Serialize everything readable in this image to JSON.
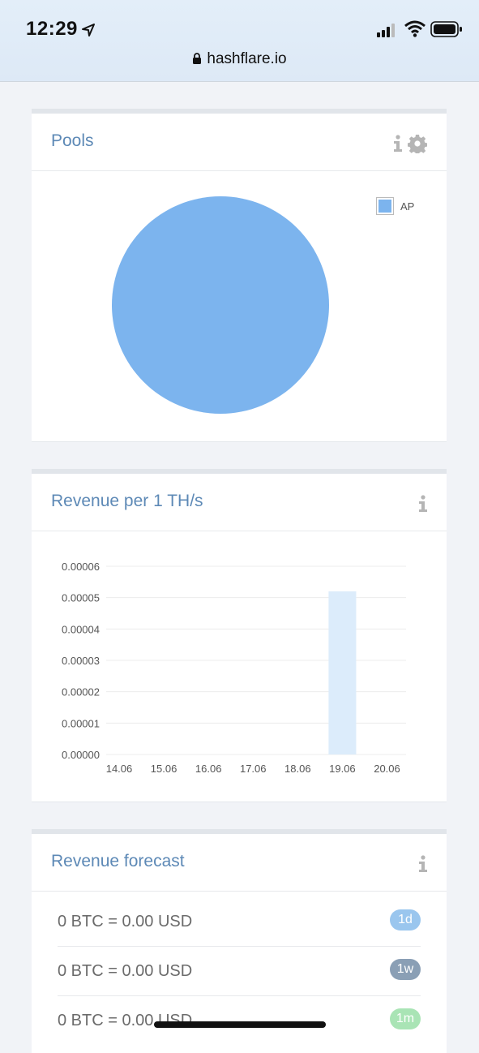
{
  "status_bar": {
    "time": "12:29"
  },
  "browser": {
    "url": "hashflare.io"
  },
  "pools": {
    "title": "Pools",
    "chart_data": {
      "type": "pie",
      "slices": [
        {
          "label": "AP",
          "value": 100,
          "color": "#7cb4ee"
        }
      ],
      "legend": "top-right"
    }
  },
  "revenue": {
    "title": "Revenue per 1 TH/s",
    "chart_data": {
      "type": "bar",
      "categories": [
        "14.06",
        "15.06",
        "16.06",
        "17.06",
        "18.06",
        "19.06",
        "20.06"
      ],
      "values": [
        0,
        0,
        0,
        0,
        0,
        5.2e-05,
        0
      ],
      "ylim": [
        0,
        6e-05
      ],
      "yticks": [
        "0.00000",
        "0.00001",
        "0.00002",
        "0.00003",
        "0.00004",
        "0.00005",
        "0.00006"
      ],
      "grid": true,
      "bar_color": "#dcecfb"
    }
  },
  "forecast": {
    "title": "Revenue forecast",
    "rows": [
      {
        "text": "0 BTC = 0.00 USD",
        "badge": "1d",
        "badge_color": "#9ac6ee"
      },
      {
        "text": "0 BTC = 0.00 USD",
        "badge": "1w",
        "badge_color": "#8a9fb5"
      },
      {
        "text": "0 BTC = 0.00 USD",
        "badge": "1m",
        "badge_color": "#a9e4b5"
      }
    ]
  }
}
